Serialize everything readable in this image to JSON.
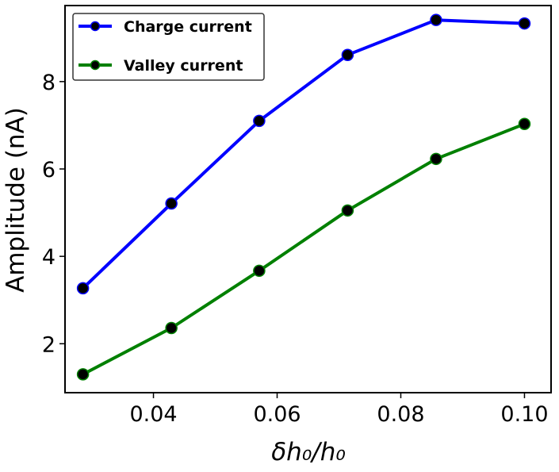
{
  "chart_data": {
    "type": "line",
    "title": "",
    "xlabel": "δh₀/h₀",
    "ylabel": "Amplitude (nA)",
    "xlim": [
      0.0257,
      0.1043
    ],
    "ylim": [
      0.88,
      9.74
    ],
    "xticks": [
      0.04,
      0.06,
      0.08,
      0.1
    ],
    "xtick_labels": [
      "0.04",
      "0.06",
      "0.08",
      "0.10"
    ],
    "yticks": [
      2,
      4,
      6,
      8
    ],
    "ytick_labels": [
      "2",
      "4",
      "6",
      "8"
    ],
    "grid": false,
    "legend_position": "top-left",
    "x": [
      0.0286,
      0.0429,
      0.0571,
      0.0714,
      0.0857,
      0.1
    ],
    "series": [
      {
        "name": "Charge current",
        "color": "#0000ff",
        "values": [
          3.27,
          5.21,
          7.1,
          8.61,
          9.41,
          9.33
        ]
      },
      {
        "name": "Valley current",
        "color": "#008000",
        "values": [
          1.3,
          2.36,
          3.67,
          5.05,
          6.23,
          7.03
        ]
      }
    ]
  }
}
